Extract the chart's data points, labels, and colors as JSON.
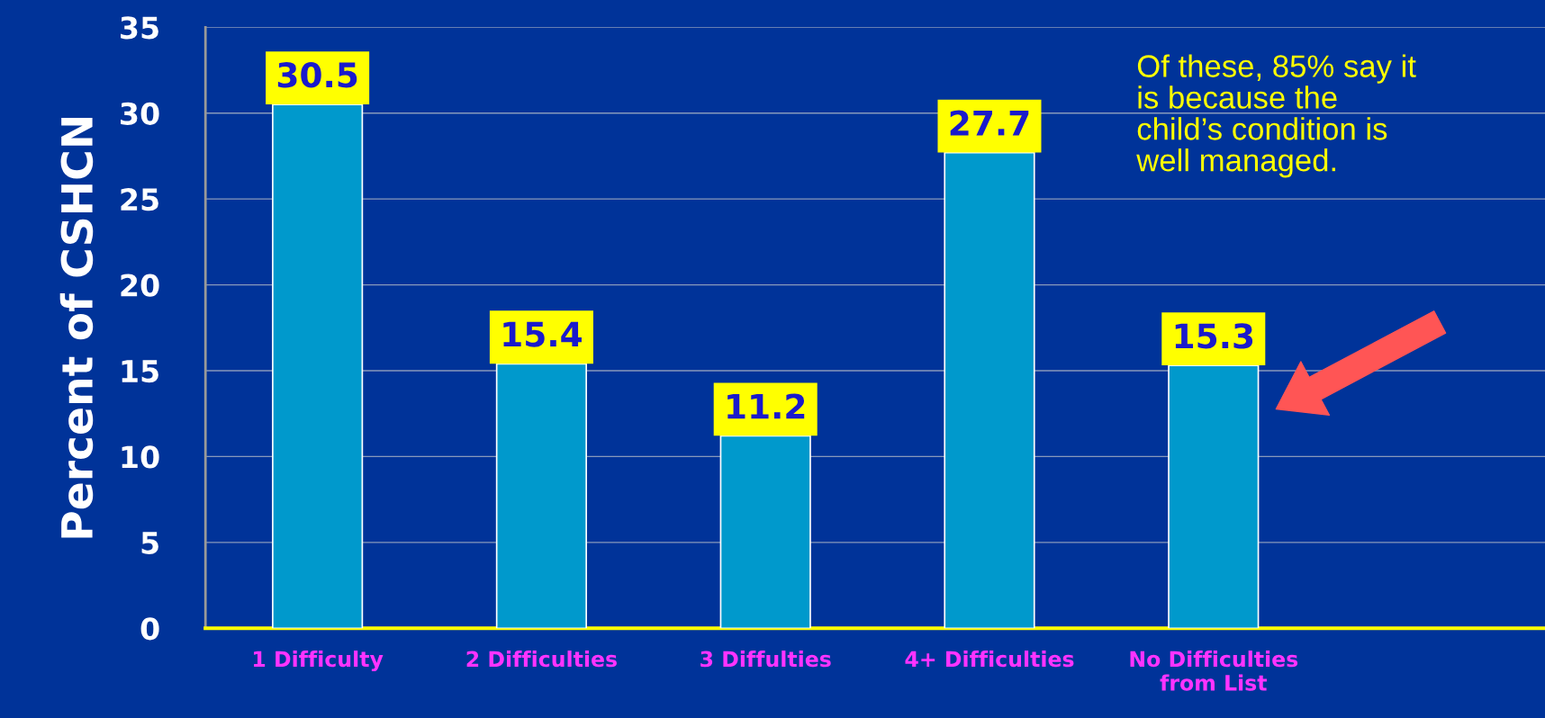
{
  "chart_data": {
    "type": "bar",
    "ylabel": "Percent of CSHCN",
    "categories": [
      "1 Difficulty",
      "2 Difficulties",
      "3 Diffulties",
      "4+ Difficulties",
      "No Difficulties\nfrom List"
    ],
    "values": [
      30.5,
      15.4,
      11.2,
      27.7,
      15.3
    ],
    "color": "#0099cc",
    "ylim": [
      0,
      35
    ],
    "yticks": [
      0,
      5,
      10,
      15,
      20,
      25,
      30,
      35
    ],
    "grid": "y",
    "data_labels": true,
    "annotations": [
      "Of these, 85% say it\nis because the\nchild’s condition is\nwell managed."
    ]
  }
}
